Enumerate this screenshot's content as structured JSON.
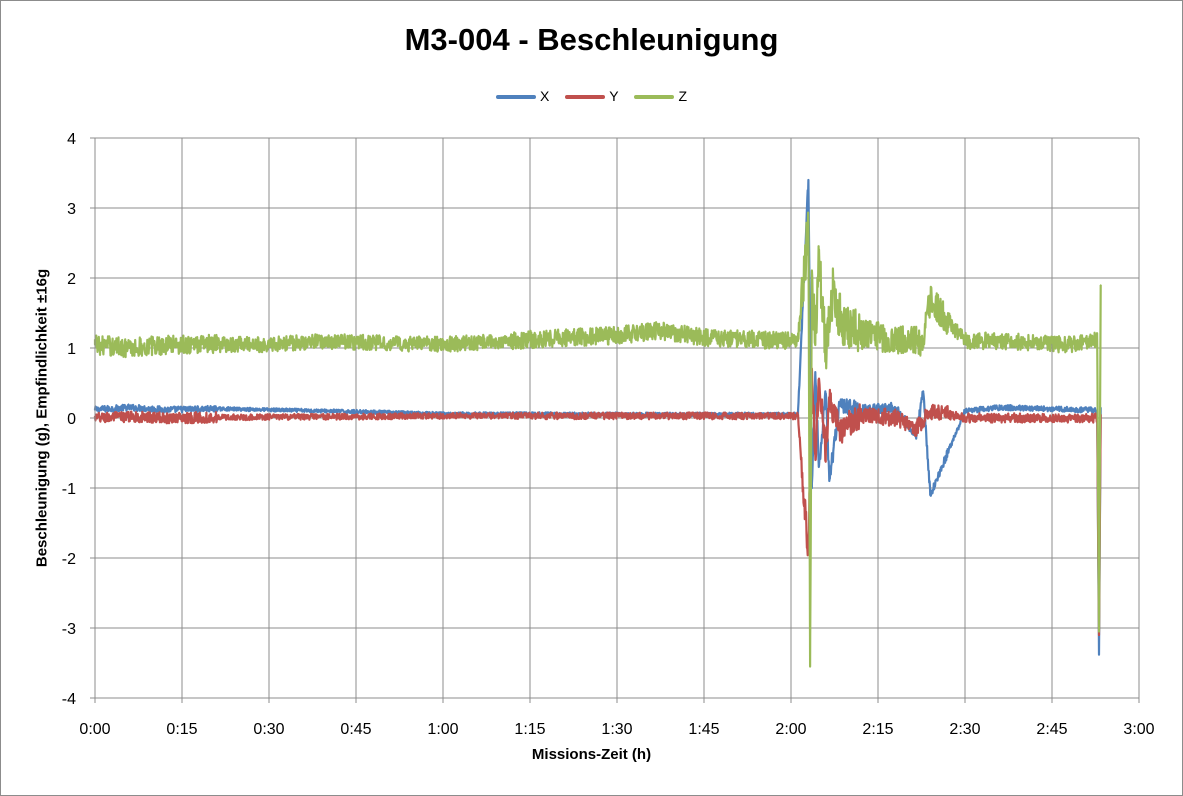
{
  "chart_data": {
    "type": "line",
    "title": "M3-004 - Beschleunigung",
    "xlabel": "Missions-Zeit  (h)",
    "ylabel": "Beschleunigung (g), Empfindlichkeit ±16g",
    "x_unit": "hours",
    "xlim": [
      0,
      3
    ],
    "ylim": [
      -4,
      4
    ],
    "x_ticks": [
      0,
      0.25,
      0.5,
      0.75,
      1,
      1.25,
      1.5,
      1.75,
      2,
      2.25,
      2.5,
      2.75,
      3
    ],
    "x_tick_labels": [
      "0:00",
      "0:15",
      "0:30",
      "0:45",
      "1:00",
      "1:15",
      "1:30",
      "1:45",
      "2:00",
      "2:15",
      "2:30",
      "2:45",
      "3:00"
    ],
    "y_ticks": [
      -4,
      -3,
      -2,
      -1,
      0,
      1,
      2,
      3,
      4
    ],
    "y_tick_labels": [
      "-4",
      "-3",
      "-2",
      "-1",
      "0",
      "1",
      "2",
      "3",
      "4"
    ],
    "grid": true,
    "legend_position": "top",
    "series": [
      {
        "name": "X",
        "color": "#4f81bd",
        "x": [
          0,
          0.1,
          0.2,
          0.38,
          0.76,
          1.0,
          1.5,
          1.9,
          2.02,
          2.05,
          2.06,
          2.07,
          2.08,
          2.1,
          2.11,
          2.14,
          2.2,
          2.3,
          2.36,
          2.38,
          2.4,
          2.5,
          2.6,
          2.8,
          2.86,
          2.88,
          2.885,
          2.89
        ],
        "y": [
          0.12,
          0.15,
          0.12,
          0.13,
          0.09,
          0.06,
          0.05,
          0.05,
          0.05,
          3.4,
          -1.0,
          0.6,
          -0.7,
          0.35,
          -0.9,
          0.2,
          0.12,
          0.15,
          -0.25,
          0.38,
          -1.1,
          0.1,
          0.15,
          0.12,
          0.12,
          0.1,
          -3.38,
          0.15
        ]
      },
      {
        "name": "Y",
        "color": "#c0504d",
        "x": [
          0,
          0.1,
          0.2,
          0.38,
          0.76,
          1.0,
          1.5,
          1.9,
          2.02,
          2.05,
          2.06,
          2.07,
          2.08,
          2.1,
          2.11,
          2.14,
          2.2,
          2.3,
          2.36,
          2.4,
          2.5,
          2.6,
          2.8,
          2.86,
          2.88,
          2.885,
          2.89
        ],
        "y": [
          0.0,
          0.02,
          0.0,
          0.01,
          0.02,
          0.03,
          0.03,
          0.03,
          0.03,
          -1.95,
          0.65,
          -0.6,
          0.55,
          -0.5,
          0.3,
          -0.2,
          0.05,
          0.0,
          -0.15,
          0.1,
          0.0,
          0.0,
          0.0,
          0.0,
          0.0,
          -3.1,
          0.05
        ]
      },
      {
        "name": "Z",
        "color": "#9bbb59",
        "x": [
          0,
          0.1,
          0.2,
          0.35,
          0.5,
          0.65,
          0.75,
          1.0,
          1.25,
          1.5,
          1.62,
          1.75,
          2.0,
          2.02,
          2.05,
          2.055,
          2.06,
          2.07,
          2.08,
          2.1,
          2.12,
          2.15,
          2.2,
          2.3,
          2.38,
          2.4,
          2.5,
          2.6,
          2.8,
          2.86,
          2.88,
          2.885,
          2.89
        ],
        "y": [
          1.05,
          1.0,
          1.05,
          1.05,
          1.05,
          1.1,
          1.08,
          1.05,
          1.12,
          1.18,
          1.25,
          1.15,
          1.1,
          1.1,
          2.75,
          -3.55,
          2.0,
          1.2,
          2.25,
          1.0,
          1.8,
          1.3,
          1.2,
          1.1,
          1.1,
          1.7,
          1.1,
          1.1,
          1.05,
          1.1,
          1.1,
          -3.05,
          1.9
        ]
      }
    ]
  }
}
